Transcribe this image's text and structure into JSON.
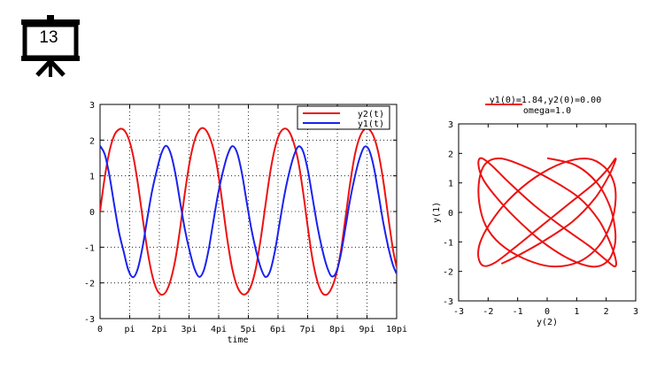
{
  "slide": {
    "number": "13",
    "icon": "presentation-board-icon"
  },
  "chart_data": [
    {
      "type": "line",
      "title": "",
      "xlabel": "time",
      "ylabel": "",
      "xlim": [
        0,
        31.4159
      ],
      "ylim": [
        -3,
        3
      ],
      "xticks": [
        {
          "value": 0,
          "label": "0"
        },
        {
          "value": 3.14159,
          "label": "pi"
        },
        {
          "value": 6.28319,
          "label": "2pi"
        },
        {
          "value": 9.42478,
          "label": "3pi"
        },
        {
          "value": 12.56637,
          "label": "4pi"
        },
        {
          "value": 15.70796,
          "label": "5pi"
        },
        {
          "value": 18.84956,
          "label": "6pi"
        },
        {
          "value": 21.99115,
          "label": "7pi"
        },
        {
          "value": 25.13274,
          "label": "8pi"
        },
        {
          "value": 28.27433,
          "label": "9pi"
        },
        {
          "value": 31.41593,
          "label": "10pi"
        }
      ],
      "yticks": [
        "-3",
        "-2",
        "-1",
        "0",
        "1",
        "2",
        "3"
      ],
      "grid": true,
      "legend": "top-right",
      "series": [
        {
          "name": "y2(t)",
          "color": "#ee1111",
          "x": [
            0,
            0.5,
            1,
            1.5,
            2,
            2.5,
            3,
            3.5,
            4,
            4.5,
            5,
            5.5,
            6,
            6.5,
            7,
            7.5,
            8,
            8.5,
            9,
            9.5,
            10,
            10.5,
            11,
            11.5,
            12,
            12.5,
            13,
            13.5,
            14,
            14.5,
            15,
            15.5,
            16,
            16.5,
            17,
            17.5,
            18,
            18.5,
            19,
            19.5,
            20,
            20.5,
            21,
            21.5,
            22,
            22.5,
            23,
            23.5,
            24,
            24.5,
            25,
            25.5,
            26,
            26.5,
            27,
            27.5,
            28,
            28.5,
            29,
            29.5,
            30,
            30.5,
            31,
            31.4
          ],
          "y": [
            0.0,
            0.96,
            1.69,
            2.13,
            2.3,
            2.29,
            2.06,
            1.57,
            0.79,
            -0.16,
            -1.06,
            -1.76,
            -2.18,
            -2.33,
            -2.24,
            -1.9,
            -1.31,
            -0.44,
            0.55,
            1.4,
            1.98,
            2.28,
            2.33,
            2.15,
            1.76,
            1.09,
            0.15,
            -0.82,
            -1.6,
            -2.08,
            -2.3,
            -2.3,
            -2.08,
            -1.59,
            -0.8,
            0.14,
            1.06,
            1.75,
            2.17,
            2.32,
            2.25,
            1.94,
            1.4,
            0.56,
            -0.43,
            -1.33,
            -1.94,
            -2.27,
            -2.33,
            -2.16,
            -1.78,
            -1.12,
            -0.17,
            0.81,
            1.6,
            2.08,
            2.3,
            2.3,
            2.09,
            1.62,
            0.86,
            -0.1,
            -1.02,
            -1.55
          ]
        },
        {
          "name": "y1(t)",
          "color": "#1a22ee",
          "x": [
            0,
            0.5,
            1,
            1.5,
            2,
            2.5,
            3,
            3.5,
            4,
            4.5,
            5,
            5.5,
            6,
            6.5,
            7,
            7.5,
            8,
            8.5,
            9,
            9.5,
            10,
            10.5,
            11,
            11.5,
            12,
            12.5,
            13,
            13.5,
            14,
            14.5,
            15,
            15.5,
            16,
            16.5,
            17,
            17.5,
            18,
            18.5,
            19,
            19.5,
            20,
            20.5,
            21,
            21.5,
            22,
            22.5,
            23,
            23.5,
            24,
            24.5,
            25,
            25.5,
            26,
            26.5,
            27,
            27.5,
            28,
            28.5,
            29,
            29.5,
            30,
            30.5,
            31,
            31.4
          ],
          "y": [
            1.84,
            1.6,
            1.0,
            0.19,
            -0.57,
            -1.12,
            -1.64,
            -1.84,
            -1.6,
            -1.0,
            -0.2,
            0.56,
            1.14,
            1.63,
            1.84,
            1.61,
            1.03,
            0.24,
            -0.52,
            -1.12,
            -1.6,
            -1.83,
            -1.64,
            -1.07,
            -0.28,
            0.49,
            1.1,
            1.58,
            1.83,
            1.66,
            1.11,
            0.32,
            -0.45,
            -1.07,
            -1.56,
            -1.83,
            -1.68,
            -1.14,
            -0.36,
            0.42,
            1.05,
            1.54,
            1.82,
            1.69,
            1.17,
            0.4,
            -0.38,
            -1.02,
            -1.52,
            -1.81,
            -1.71,
            -1.21,
            -0.44,
            0.35,
            0.99,
            1.5,
            1.81,
            1.72,
            1.24,
            0.48,
            -0.31,
            -0.96,
            -1.48,
            -1.74
          ]
        }
      ]
    },
    {
      "type": "line",
      "title": "y1(0)=1.84,y2(0)=0.00",
      "subtitle": "omega=1.0",
      "xlabel": "y(2)",
      "ylabel": "y(1)",
      "xlim": [
        -3,
        3
      ],
      "ylim": [
        -3,
        3
      ],
      "xticks": [
        "-3",
        "-2",
        "-1",
        "0",
        "1",
        "2",
        "3"
      ],
      "yticks": [
        "-3",
        "-2",
        "-1",
        "0",
        "1",
        "2",
        "3"
      ],
      "grid": false,
      "series": [
        {
          "color": "#ee1111",
          "x": [
            0.0,
            0.96,
            1.69,
            2.13,
            2.3,
            2.29,
            2.06,
            1.57,
            0.79,
            -0.16,
            -1.06,
            -1.76,
            -2.18,
            -2.33,
            -2.24,
            -1.9,
            -1.31,
            -0.44,
            0.55,
            1.4,
            1.98,
            2.28,
            2.33,
            2.15,
            1.76,
            1.09,
            0.15,
            -0.82,
            -1.6,
            -2.08,
            -2.3,
            -2.3,
            -2.08,
            -1.59,
            -0.8,
            0.14,
            1.06,
            1.75,
            2.17,
            2.32,
            2.25,
            1.94,
            1.4,
            0.56,
            -0.43,
            -1.33,
            -1.94,
            -2.27,
            -2.33,
            -2.16,
            -1.78,
            -1.12,
            -0.17,
            0.81,
            1.6,
            2.08,
            2.3,
            2.3,
            2.09,
            1.62,
            0.86,
            -0.1,
            -1.02,
            -1.55
          ],
          "y": [
            1.84,
            1.6,
            1.0,
            0.19,
            -0.57,
            -1.12,
            -1.64,
            -1.84,
            -1.6,
            -1.0,
            -0.2,
            0.56,
            1.14,
            1.63,
            1.84,
            1.61,
            1.03,
            0.24,
            -0.52,
            -1.12,
            -1.6,
            -1.83,
            -1.64,
            -1.07,
            -0.28,
            0.49,
            1.1,
            1.58,
            1.83,
            1.66,
            1.11,
            0.32,
            -0.45,
            -1.07,
            -1.56,
            -1.83,
            -1.68,
            -1.14,
            -0.36,
            0.42,
            1.05,
            1.54,
            1.82,
            1.69,
            1.17,
            0.4,
            -0.38,
            -1.02,
            -1.52,
            -1.81,
            -1.71,
            -1.21,
            -0.44,
            0.35,
            0.99,
            1.5,
            1.81,
            1.72,
            1.24,
            0.48,
            -0.31,
            -0.96,
            -1.48,
            -1.74
          ]
        }
      ]
    }
  ]
}
